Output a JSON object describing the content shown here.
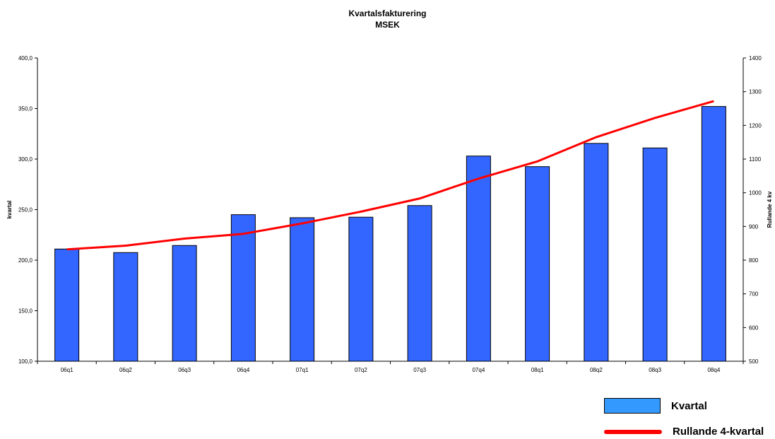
{
  "chart_data": {
    "type": "bar",
    "title": "Kvartalsfakturering",
    "subtitle": "MSEK",
    "categories": [
      "06q1",
      "06q2",
      "06q3",
      "06q4",
      "07q1",
      "07q2",
      "07q3",
      "07q4",
      "08q1",
      "08q2",
      "08q3",
      "08q4"
    ],
    "series": [
      {
        "name": "Kvartal",
        "type": "bar",
        "axis": "left",
        "color": "#3366ff",
        "values": [
          211.0,
          207.5,
          214.5,
          245.0,
          242.0,
          242.5,
          254.0,
          303.0,
          292.5,
          315.5,
          311.0,
          352.0
        ]
      },
      {
        "name": "Rullande 4-kvartal",
        "type": "line",
        "axis": "right",
        "color": "#ff0000",
        "values": [
          832,
          843,
          864,
          878,
          909,
          944,
          983,
          1042,
          1093,
          1165,
          1222,
          1272
        ]
      }
    ],
    "ylabel": "kvartal",
    "ylabel_right": "Rullande 4 kv",
    "ylim": [
      100,
      400
    ],
    "ylim_right": [
      500,
      1400
    ],
    "yticks": [
      "100,0",
      "150,0",
      "200,0",
      "250,0",
      "300,0",
      "350,0",
      "400,0"
    ],
    "yticks_right": [
      "500",
      "600",
      "700",
      "800",
      "900",
      "1000",
      "1100",
      "1200",
      "1300",
      "1400"
    ],
    "grid": false,
    "legend_position": "bottom-right"
  }
}
